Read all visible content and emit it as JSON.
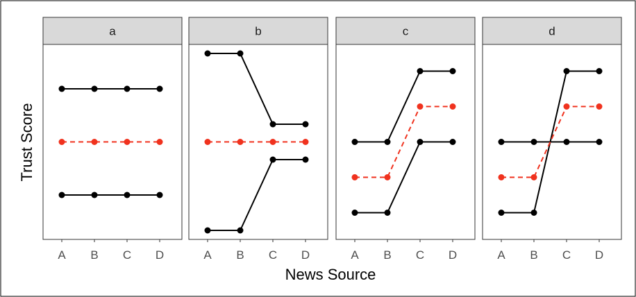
{
  "chart_data": {
    "type": "line",
    "xlabel": "News Source",
    "ylabel": "Trust Score",
    "categories": [
      "A",
      "B",
      "C",
      "D"
    ],
    "ylim": [
      0,
      10
    ],
    "grid": false,
    "colors": {
      "solid": "#000000",
      "mean": "#f0321e",
      "strip": "#d9d9d9",
      "panel_border": "#333333"
    },
    "panels": [
      {
        "label": "a",
        "series": [
          {
            "style": "solid",
            "values": [
              8,
              8,
              8,
              8
            ]
          },
          {
            "style": "dashed",
            "values": [
              5,
              5,
              5,
              5
            ]
          },
          {
            "style": "solid",
            "values": [
              2,
              2,
              2,
              2
            ]
          }
        ]
      },
      {
        "label": "b",
        "series": [
          {
            "style": "solid",
            "values": [
              10,
              10,
              6,
              6
            ]
          },
          {
            "style": "dashed",
            "values": [
              5,
              5,
              5,
              5
            ]
          },
          {
            "style": "solid",
            "values": [
              0,
              0,
              4,
              4
            ]
          }
        ]
      },
      {
        "label": "c",
        "series": [
          {
            "style": "solid",
            "values": [
              5,
              5,
              9,
              9
            ]
          },
          {
            "style": "dashed",
            "values": [
              3,
              3,
              7,
              7
            ]
          },
          {
            "style": "solid",
            "values": [
              1,
              1,
              5,
              5
            ]
          }
        ]
      },
      {
        "label": "d",
        "series": [
          {
            "style": "solid",
            "values": [
              5,
              5,
              5,
              5
            ]
          },
          {
            "style": "dashed",
            "values": [
              3,
              3,
              7,
              7
            ]
          },
          {
            "style": "solid",
            "values": [
              1,
              1,
              9,
              9
            ]
          }
        ]
      }
    ]
  }
}
